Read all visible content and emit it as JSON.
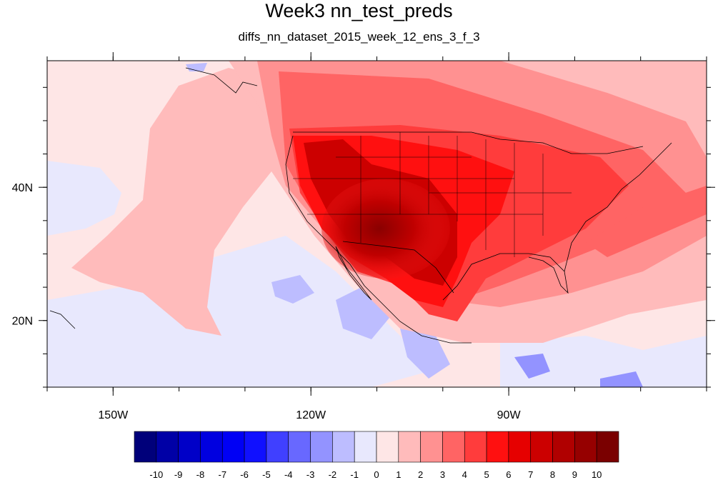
{
  "title": "Week3 nn_test_preds",
  "subtitle": "diffs_nn_dataset_2015_week_12_ens_3_f_3",
  "map": {
    "projection": "cylindrical-equidistant",
    "lon_range": [
      -160,
      -60
    ],
    "lat_range": [
      10,
      59
    ],
    "lon_ticks": [
      {
        "value": -150,
        "label": "150W"
      },
      {
        "value": -120,
        "label": "120W"
      },
      {
        "value": -90,
        "label": "90W"
      }
    ],
    "lat_ticks": [
      {
        "value": 40,
        "label": "40N"
      },
      {
        "value": 20,
        "label": "20N"
      }
    ]
  },
  "colorbar": {
    "levels": [
      "-10",
      "-9",
      "-8",
      "-7",
      "-6",
      "-5",
      "-4",
      "-3",
      "-2",
      "-1",
      "0",
      "1",
      "2",
      "3",
      "4",
      "5",
      "6",
      "7",
      "8",
      "9",
      "10"
    ],
    "colors": [
      "#00007a",
      "#0000a6",
      "#0000c8",
      "#0000e0",
      "#0000f5",
      "#1010ff",
      "#4040ff",
      "#6868ff",
      "#9393ff",
      "#bdbdff",
      "#e8e8fd",
      "#fee6e6",
      "#ffbbbb",
      "#ff9191",
      "#ff6464",
      "#ff3c3c",
      "#ff1010",
      "#e60000",
      "#cc0000",
      "#b00000",
      "#960000",
      "#7a0000"
    ]
  }
}
